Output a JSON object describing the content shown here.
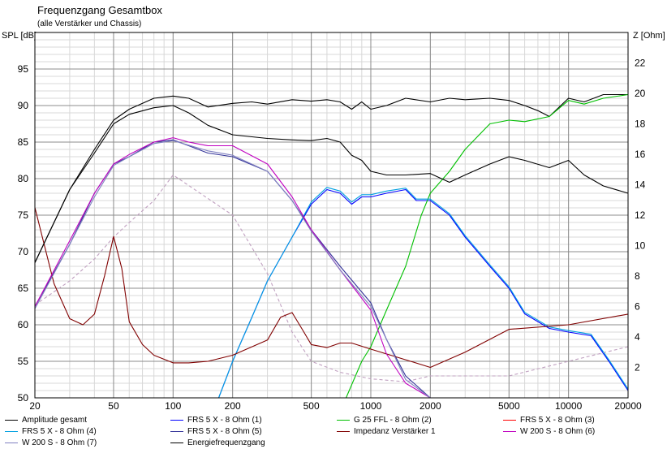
{
  "chart_data": {
    "type": "line",
    "title": "Frequenzgang Gesamtbox",
    "subtitle": "(alle Verstärker und Chassis)",
    "ylabel_left": "SPL [dB]",
    "ylabel_right": "Z [Ohm]",
    "x_scale": "log",
    "xlim": [
      20,
      20000
    ],
    "ylim_left": [
      50,
      100
    ],
    "ylim_right": [
      0,
      24
    ],
    "x_tick_labels": [
      "20",
      "50",
      "100",
      "200",
      "500",
      "1000",
      "2000",
      "5000",
      "10000",
      "20000"
    ],
    "y_left_tick_labels": [
      "50",
      "55",
      "60",
      "65",
      "70",
      "75",
      "80",
      "85",
      "90",
      "95"
    ],
    "y_right_tick_labels": [
      "2",
      "4",
      "6",
      "8",
      "10",
      "12",
      "14",
      "16",
      "18",
      "20",
      "22"
    ],
    "grid": true,
    "legend_position": "bottom",
    "series": [
      {
        "name": "Amplitude gesamt",
        "color": "#000000",
        "axis": "left",
        "x": [
          20,
          25,
          30,
          40,
          50,
          60,
          80,
          100,
          120,
          150,
          200,
          250,
          300,
          400,
          500,
          600,
          700,
          800,
          900,
          1000,
          1200,
          1500,
          2000,
          2500,
          3000,
          4000,
          5000,
          6000,
          7000,
          8000,
          10000,
          12000,
          15000,
          20000
        ],
        "y": [
          68.5,
          74,
          78.5,
          84,
          88,
          89.5,
          91,
          91.3,
          91,
          89.8,
          90.3,
          90.5,
          90.2,
          90.8,
          90.6,
          90.8,
          90.5,
          89.5,
          90.5,
          89.5,
          90,
          91,
          90.5,
          91,
          90.8,
          91,
          90.7,
          90,
          89.3,
          88.5,
          91,
          90.5,
          91.5,
          91.5
        ]
      },
      {
        "name": "FRS 5 X - 8 Ohm (1)",
        "color": "#0000ff",
        "axis": "left",
        "x": [
          170,
          200,
          250,
          300,
          400,
          500,
          600,
          700,
          800,
          900,
          1000,
          1200,
          1500,
          1700,
          2000,
          2500,
          3000,
          4000,
          5000,
          6000,
          8000,
          10000,
          13000,
          16000,
          20000
        ],
        "y": [
          50,
          55,
          61,
          66,
          72,
          76.5,
          78.5,
          78,
          76.5,
          77.5,
          77.5,
          78,
          78.5,
          77,
          77,
          75,
          72,
          68,
          65,
          61.5,
          59.5,
          59,
          58.5,
          55,
          51
        ]
      },
      {
        "name": "G 25 FFL - 8 Ohm (2)",
        "color": "#00c000",
        "axis": "left",
        "x": [
          750,
          900,
          1000,
          1200,
          1500,
          1800,
          2000,
          2500,
          3000,
          4000,
          5000,
          6000,
          8000,
          10000,
          12000,
          15000,
          20000
        ],
        "y": [
          50,
          55,
          57,
          62,
          68,
          75,
          78,
          81,
          84,
          87.5,
          88,
          87.8,
          88.5,
          90.7,
          90.2,
          91,
          91.5
        ]
      },
      {
        "name": "FRS 5 X - 8 Ohm (3)",
        "color": "#ff0000",
        "axis": "left",
        "x": [
          20,
          30,
          40,
          50,
          60,
          80,
          100,
          200,
          300,
          400,
          500,
          700,
          1000,
          1500,
          2000,
          3000,
          5000,
          10000,
          20000
        ],
        "y": [
          62.7,
          66,
          69,
          72,
          74,
          77,
          80.5,
          75,
          67,
          59,
          55,
          53.5,
          52.6,
          52.2,
          53,
          53,
          53,
          55,
          57
        ]
      },
      {
        "name": "FRS 5 X - 8 Ohm (4)",
        "color": "#00a0e0",
        "axis": "left",
        "x": [
          170,
          200,
          250,
          300,
          400,
          500,
          600,
          700,
          800,
          900,
          1000,
          1200,
          1500,
          1700,
          2000,
          2500,
          3000,
          4000,
          5000,
          6000,
          8000,
          10000,
          13000,
          16000,
          20000
        ],
        "y": [
          50,
          55,
          61,
          66,
          72,
          76.8,
          78.8,
          78.3,
          76.8,
          77.8,
          77.8,
          78.3,
          78.7,
          77.2,
          77.2,
          75.2,
          72.2,
          68.2,
          65.2,
          61.7,
          59.7,
          59.2,
          58.7,
          55.2,
          51.2
        ]
      },
      {
        "name": "FRS 5 X - 8 Ohm (5)",
        "color": "#333399",
        "axis": "left",
        "x": [
          20,
          30,
          40,
          50,
          60,
          80,
          100,
          120,
          150,
          200,
          300,
          400,
          500,
          700,
          1000,
          1200,
          1500,
          2000,
          2500
        ],
        "y": [
          62.5,
          71,
          78,
          82,
          83,
          85,
          85.3,
          84.5,
          83.5,
          83,
          81,
          77,
          73,
          68,
          63,
          58,
          53,
          50,
          50
        ]
      },
      {
        "name": "Impedanz Verstärker 1",
        "color": "#800000",
        "axis": "right",
        "x": [
          20,
          25,
          30,
          35,
          40,
          45,
          50,
          55,
          60,
          70,
          80,
          100,
          120,
          150,
          200,
          300,
          350,
          400,
          450,
          500,
          600,
          700,
          800,
          1000,
          1500,
          2000,
          3000,
          5000,
          10000,
          20000
        ],
        "y": [
          12.5,
          7.5,
          5.2,
          4.8,
          5.5,
          8,
          10.6,
          8.5,
          5,
          3.5,
          2.8,
          2.3,
          2.3,
          2.4,
          2.8,
          3.8,
          5.3,
          5.6,
          4.5,
          3.5,
          3.3,
          3.6,
          3.6,
          3.2,
          2.5,
          2,
          3,
          4.5,
          4.8,
          5.5
        ]
      },
      {
        "name": "W 200 S - 8 Ohm (6)",
        "color": "#c000c0",
        "axis": "left",
        "x": [
          20,
          30,
          40,
          50,
          60,
          80,
          100,
          120,
          150,
          200,
          300,
          400,
          500,
          700,
          1000,
          1200,
          1500,
          2000,
          2500
        ],
        "y": [
          62.5,
          71.5,
          78,
          82,
          83.3,
          85,
          85.6,
          85,
          84.5,
          84.5,
          82,
          77.5,
          73,
          67.5,
          62,
          56,
          52,
          50,
          50
        ]
      },
      {
        "name": "W 200 S - 8 Ohm (7)",
        "color": "#8080c0",
        "axis": "left",
        "x": [
          20,
          30,
          40,
          50,
          60,
          80,
          100,
          150,
          200,
          300,
          400,
          500,
          700,
          1000,
          1500,
          2000,
          2500
        ],
        "y": [
          62.2,
          71,
          77.5,
          81.8,
          83,
          84.8,
          85.2,
          83.8,
          83.2,
          81,
          77,
          72.8,
          67.5,
          62.5,
          52.5,
          50,
          50
        ]
      },
      {
        "name": "Energiefrequenzgang",
        "color": "#000000",
        "axis": "left",
        "x": [
          20,
          25,
          30,
          40,
          50,
          60,
          80,
          100,
          120,
          150,
          200,
          300,
          400,
          500,
          600,
          700,
          800,
          900,
          1000,
          1200,
          1500,
          2000,
          2500,
          3000,
          4000,
          5000,
          6000,
          8000,
          10000,
          12000,
          15000,
          20000
        ],
        "y": [
          68.5,
          74,
          78.5,
          83.5,
          87.5,
          88.8,
          89.7,
          90,
          89,
          87.3,
          86,
          85.5,
          85.3,
          85.2,
          85.5,
          85,
          83.2,
          82.5,
          81,
          80.5,
          80.5,
          80.7,
          79.5,
          80.5,
          82,
          83,
          82.5,
          81.5,
          82.5,
          80.5,
          79,
          78
        ]
      }
    ]
  }
}
